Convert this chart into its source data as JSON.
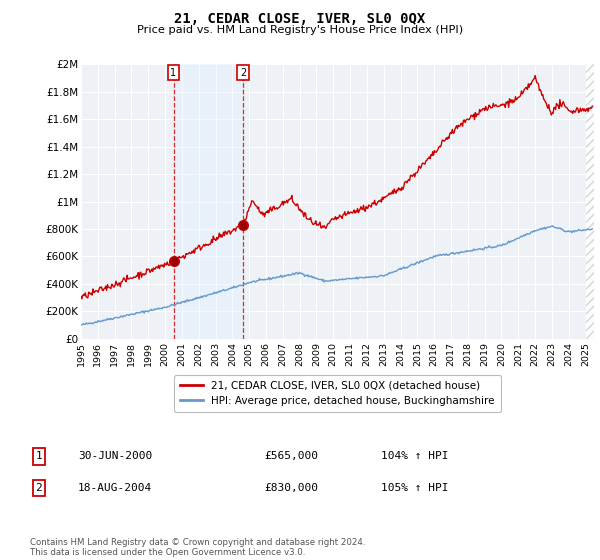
{
  "title": "21, CEDAR CLOSE, IVER, SL0 0QX",
  "subtitle": "Price paid vs. HM Land Registry's House Price Index (HPI)",
  "ylabel_ticks": [
    "£0",
    "£200K",
    "£400K",
    "£600K",
    "£800K",
    "£1M",
    "£1.2M",
    "£1.4M",
    "£1.6M",
    "£1.8M",
    "£2M"
  ],
  "ylim": [
    0,
    2000000
  ],
  "xlim_start": 1995.0,
  "xlim_end": 2025.5,
  "red_line_color": "#cc0000",
  "blue_line_color": "#6699cc",
  "shade_color": "#ddeeff",
  "marker1_date": 2000.5,
  "marker1_value": 565000,
  "marker2_date": 2004.63,
  "marker2_value": 830000,
  "vline1_x": 2000.5,
  "vline2_x": 2004.63,
  "legend_label_red": "21, CEDAR CLOSE, IVER, SL0 0QX (detached house)",
  "legend_label_blue": "HPI: Average price, detached house, Buckinghamshire",
  "table_row1": [
    "1",
    "30-JUN-2000",
    "£565,000",
    "104% ↑ HPI"
  ],
  "table_row2": [
    "2",
    "18-AUG-2004",
    "£830,000",
    "105% ↑ HPI"
  ],
  "footnote": "Contains HM Land Registry data © Crown copyright and database right 2024.\nThis data is licensed under the Open Government Licence v3.0.",
  "background_color": "#ffffff",
  "plot_bg_color": "#eef2f7",
  "grid_color": "#ffffff",
  "hatch_color": "#cccccc"
}
